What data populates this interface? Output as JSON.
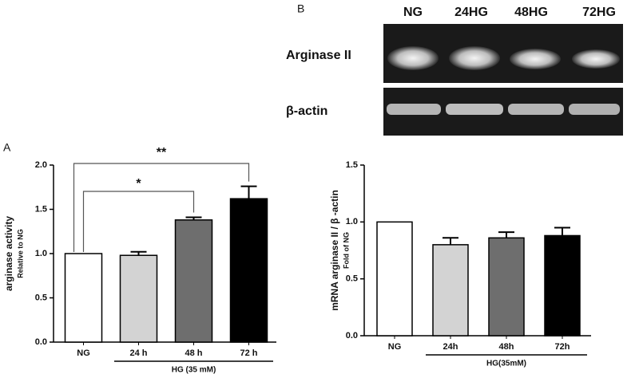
{
  "chart_data": [
    {
      "type": "bar",
      "panel_label": "A",
      "y_label": "arginase activity",
      "y_sublabel": "Relative to NG",
      "categories": [
        "NG",
        "24 h",
        "48 h",
        "72 h"
      ],
      "values": [
        1.0,
        0.98,
        1.38,
        1.62
      ],
      "errors": [
        0,
        0.04,
        0.03,
        0.14
      ],
      "colors": [
        "#ffffff",
        "#d3d3d3",
        "#6e6e6e",
        "#000000"
      ],
      "group_label": "HG (35 mM)",
      "annotations": [
        "*",
        "**"
      ],
      "ylim": [
        0,
        2.0
      ],
      "yticks": [
        {
          "value": 0,
          "label": "0.0"
        },
        0.5,
        {
          "value": 1,
          "label": "1.0"
        },
        1.5,
        {
          "value": 2,
          "label": "2.0"
        }
      ]
    },
    {
      "type": "bar",
      "y_label": "mRNA arginase II / β -actin",
      "y_sublabel": "Fold of NG",
      "categories": [
        "NG",
        "24h",
        "48h",
        "72h"
      ],
      "values": [
        1.0,
        0.8,
        0.86,
        0.88
      ],
      "errors": [
        0,
        0.06,
        0.05,
        0.07
      ],
      "colors": [
        "#ffffff",
        "#d3d3d3",
        "#6e6e6e",
        "#000000"
      ],
      "group_label": "HG(35mM)",
      "ylim": [
        0,
        1.5
      ],
      "yticks": [
        {
          "value": 0,
          "label": "0.0"
        },
        0.5,
        {
          "value": 1,
          "label": "1.0"
        },
        1.5
      ]
    }
  ],
  "gel": {
    "panel_label": "B",
    "lanes": [
      "NG",
      "24HG",
      "48HG",
      "72HG"
    ],
    "rows": [
      "Arginase II",
      "β-actin"
    ]
  }
}
